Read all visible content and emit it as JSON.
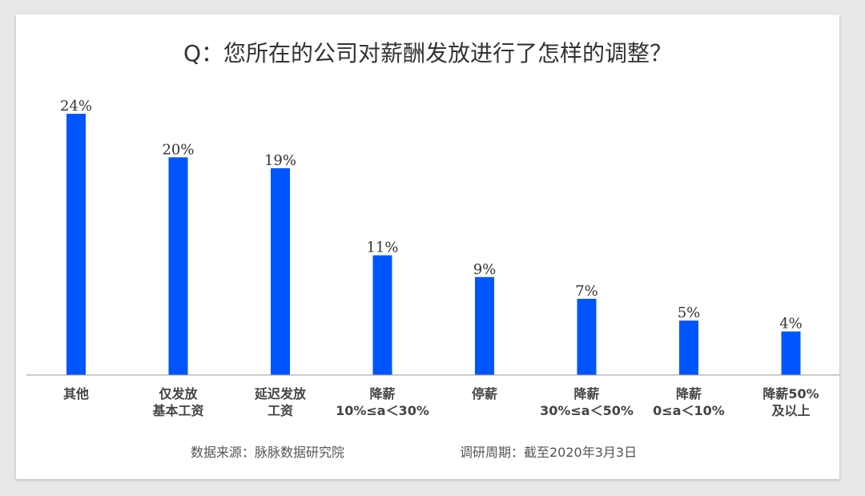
{
  "colors": {
    "bar": "#0055FF",
    "baseline": "#999999"
  },
  "chart_data": {
    "type": "bar",
    "title": "Q：您所在的公司对薪酬发放进行了怎样的调整？",
    "categories": [
      [
        "其他"
      ],
      [
        "仅发放",
        "基本工资"
      ],
      [
        "延迟发放",
        "工资"
      ],
      [
        "降薪",
        "10%≤a＜30%"
      ],
      [
        "停薪"
      ],
      [
        "降薪",
        "30%≤a＜50%"
      ],
      [
        "降薪",
        "0≤a＜10%"
      ],
      [
        "降薪50%",
        "及以上"
      ]
    ],
    "values": [
      24,
      20,
      19,
      11,
      9,
      7,
      5,
      4
    ],
    "value_labels": [
      "24%",
      "20%",
      "19%",
      "11%",
      "9%",
      "7%",
      "5%",
      "4%"
    ],
    "ylim": [
      0,
      24
    ],
    "grid": false
  },
  "footer": {
    "source": "数据来源：脉脉数据研究院",
    "period": "调研周期：截至2020年3月3日"
  }
}
